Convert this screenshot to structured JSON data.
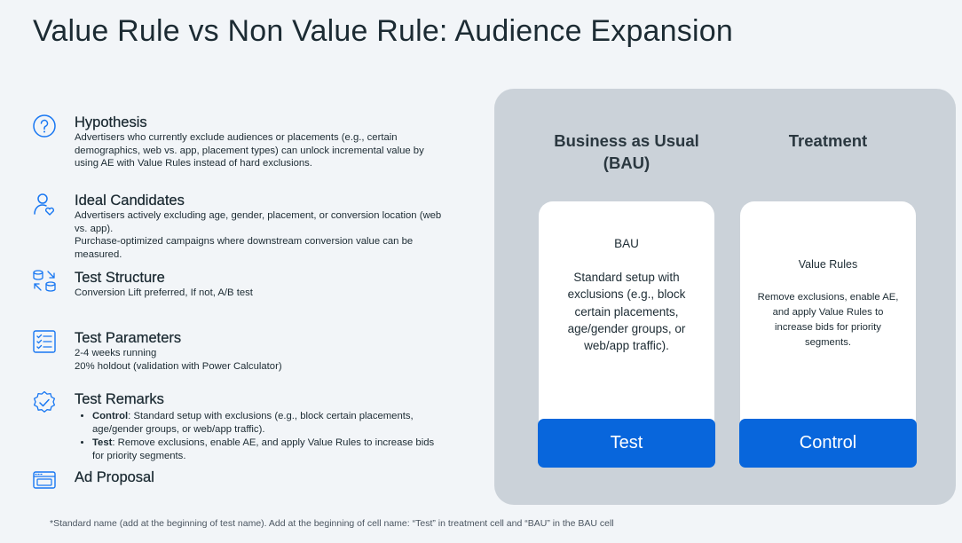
{
  "title": "Value Rule vs Non Value Rule: Audience Expansion",
  "accent_color": "#0866dc",
  "sections": {
    "hypothesis": {
      "icon": "question-circle-icon",
      "heading": "Hypothesis",
      "text": "Advertisers who currently exclude audiences or placements (e.g., certain demographics, web vs. app, placement types) can unlock incremental value by using AE with Value Rules instead of hard exclusions."
    },
    "ideal_candidates": {
      "icon": "user-heart-icon",
      "heading": "Ideal Candidates",
      "line1": "Advertisers actively excluding age, gender, placement, or conversion location (web vs. app).",
      "line2": "Purchase-optimized campaigns where downstream conversion value can be measured."
    },
    "test_structure": {
      "icon": "structure-icon",
      "heading": "Test Structure",
      "text": "Conversion Lift preferred, If not, A/B test"
    },
    "test_parameters": {
      "icon": "checklist-icon",
      "heading": "Test Parameters",
      "line1": "2-4 weeks running",
      "line2": "20% holdout (validation with Power Calculator)"
    },
    "test_remarks": {
      "icon": "badge-check-icon",
      "heading": "Test Remarks",
      "items": [
        {
          "label": "Control",
          "text": ": Standard setup with exclusions (e.g., block certain placements, age/gender groups, or web/app traffic)."
        },
        {
          "label": "Test",
          "text": ": Remove exclusions, enable AE, and apply Value Rules to increase bids for priority segments."
        }
      ]
    },
    "ad_proposal": {
      "icon": "browser-window-icon",
      "heading": "Ad Proposal"
    }
  },
  "panel": {
    "bau": {
      "header": "Business as Usual (BAU)",
      "card_name": "BAU",
      "card_desc": "Standard setup with exclusions (e.g., block certain placements, age/gender groups, or web/app traffic).",
      "button": "Test"
    },
    "treatment": {
      "header": "Treatment",
      "card_name": "Value Rules",
      "card_desc": "Remove exclusions, enable AE, and apply Value Rules to increase bids for priority segments.",
      "button": "Control"
    }
  },
  "footnote": "*Standard name (add at the beginning of test name). Add at the beginning of cell name: “Test” in treatment cell and “BAU” in the BAU cell"
}
